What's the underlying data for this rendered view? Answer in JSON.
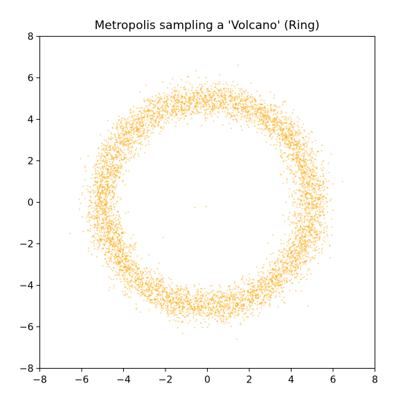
{
  "chart_data": {
    "type": "scatter",
    "title": "Metropolis sampling a 'Volcano' (Ring)",
    "xlabel": "",
    "ylabel": "",
    "xlim": [
      -8,
      8
    ],
    "ylim": [
      -8,
      8
    ],
    "xticks": [
      -8,
      -6,
      -4,
      -2,
      0,
      2,
      4,
      6,
      8
    ],
    "yticks": [
      -8,
      -6,
      -4,
      -2,
      0,
      2,
      4,
      6,
      8
    ],
    "xtick_labels": [
      "−8",
      "−6",
      "−4",
      "−2",
      "0",
      "2",
      "4",
      "6",
      "8"
    ],
    "ytick_labels": [
      "−8",
      "−6",
      "−4",
      "−2",
      "0",
      "2",
      "4",
      "6",
      "8"
    ],
    "grid": false,
    "legend": "none",
    "point_color": "#ffa500",
    "point_alpha": 0.45,
    "ring_distribution": {
      "center": [
        0,
        0
      ],
      "mean_radius": 5.0,
      "radius_sd": 0.42,
      "approx_sample_count": 6000
    },
    "outlier_points": [
      {
        "x": -0.6,
        "y": -0.25
      },
      {
        "x": -0.05,
        "y": -0.2
      },
      {
        "x": -2.1,
        "y": -1.7
      },
      {
        "x": 1.45,
        "y": 6.6
      },
      {
        "x": 1.4,
        "y": -6.6
      },
      {
        "x": -6.55,
        "y": -1.5
      },
      {
        "x": 6.45,
        "y": 1.0
      },
      {
        "x": -6.05,
        "y": 2.1
      },
      {
        "x": 4.8,
        "y": -5.0
      }
    ]
  }
}
